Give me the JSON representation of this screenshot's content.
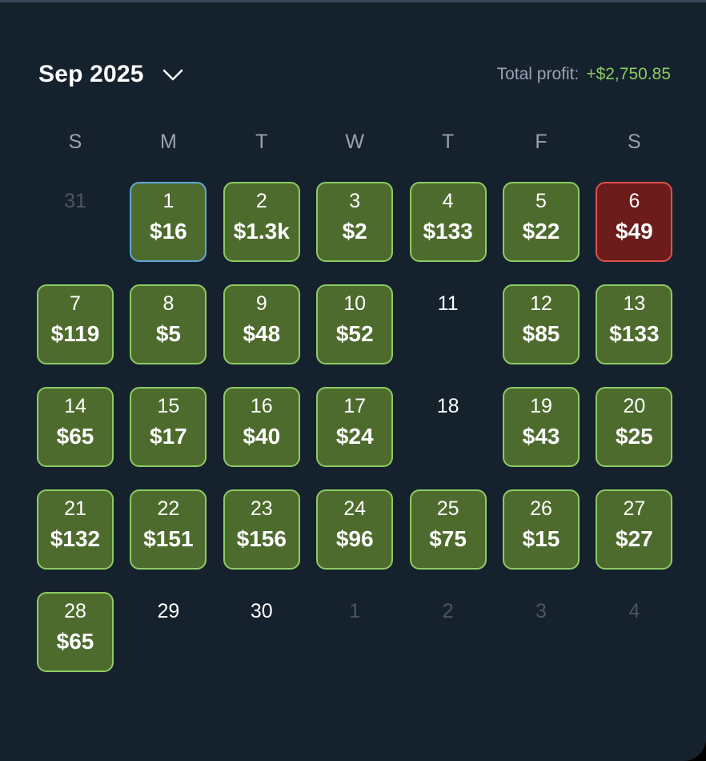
{
  "header": {
    "month_label": "Sep 2025",
    "chevron_icon": "chevron-down-icon",
    "profit_label": "Total profit:",
    "profit_value": "+$2,750.85"
  },
  "colors": {
    "background": "#16212e",
    "profit_fill": "#4e6b2e",
    "profit_border": "#8ccc62",
    "loss_fill": "#6b1c1b",
    "loss_border": "#e0514a",
    "today_border": "#5ea8d6",
    "profit_text": "#8ccc62"
  },
  "weekdays": [
    "S",
    "M",
    "T",
    "W",
    "T",
    "F",
    "S"
  ],
  "days": [
    {
      "day": "31",
      "amount": "",
      "status": "outside"
    },
    {
      "day": "1",
      "amount": "$16",
      "status": "profit",
      "today": true
    },
    {
      "day": "2",
      "amount": "$1.3k",
      "status": "profit"
    },
    {
      "day": "3",
      "amount": "$2",
      "status": "profit"
    },
    {
      "day": "4",
      "amount": "$133",
      "status": "profit"
    },
    {
      "day": "5",
      "amount": "$22",
      "status": "profit"
    },
    {
      "day": "6",
      "amount": "$49",
      "status": "loss"
    },
    {
      "day": "7",
      "amount": "$119",
      "status": "profit"
    },
    {
      "day": "8",
      "amount": "$5",
      "status": "profit"
    },
    {
      "day": "9",
      "amount": "$48",
      "status": "profit"
    },
    {
      "day": "10",
      "amount": "$52",
      "status": "profit"
    },
    {
      "day": "11",
      "amount": "",
      "status": "none"
    },
    {
      "day": "12",
      "amount": "$85",
      "status": "profit"
    },
    {
      "day": "13",
      "amount": "$133",
      "status": "profit"
    },
    {
      "day": "14",
      "amount": "$65",
      "status": "profit"
    },
    {
      "day": "15",
      "amount": "$17",
      "status": "profit"
    },
    {
      "day": "16",
      "amount": "$40",
      "status": "profit"
    },
    {
      "day": "17",
      "amount": "$24",
      "status": "profit"
    },
    {
      "day": "18",
      "amount": "",
      "status": "none"
    },
    {
      "day": "19",
      "amount": "$43",
      "status": "profit"
    },
    {
      "day": "20",
      "amount": "$25",
      "status": "profit"
    },
    {
      "day": "21",
      "amount": "$132",
      "status": "profit"
    },
    {
      "day": "22",
      "amount": "$151",
      "status": "profit"
    },
    {
      "day": "23",
      "amount": "$156",
      "status": "profit"
    },
    {
      "day": "24",
      "amount": "$96",
      "status": "profit"
    },
    {
      "day": "25",
      "amount": "$75",
      "status": "profit"
    },
    {
      "day": "26",
      "amount": "$15",
      "status": "profit"
    },
    {
      "day": "27",
      "amount": "$27",
      "status": "profit"
    },
    {
      "day": "28",
      "amount": "$65",
      "status": "profit"
    },
    {
      "day": "29",
      "amount": "",
      "status": "none"
    },
    {
      "day": "30",
      "amount": "",
      "status": "none"
    },
    {
      "day": "1",
      "amount": "",
      "status": "outside"
    },
    {
      "day": "2",
      "amount": "",
      "status": "outside"
    },
    {
      "day": "3",
      "amount": "",
      "status": "outside"
    },
    {
      "day": "4",
      "amount": "",
      "status": "outside"
    }
  ]
}
